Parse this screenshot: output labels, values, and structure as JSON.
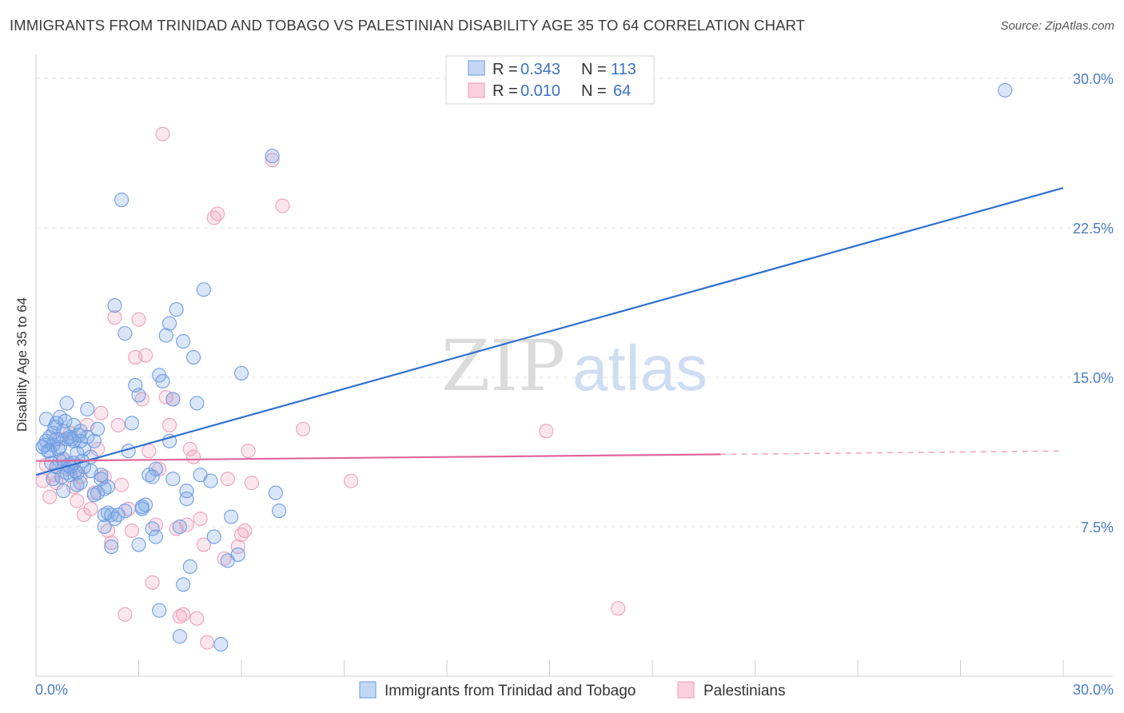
{
  "title": "IMMIGRANTS FROM TRINIDAD AND TOBAGO VS PALESTINIAN DISABILITY AGE 35 TO 64 CORRELATION CHART",
  "source": "Source: ZipAtlas.com",
  "watermark": {
    "zip": "ZIP",
    "atlas": "atlas"
  },
  "colors": {
    "blue": "#7aa6e6",
    "blue_line": "#2f6fcf",
    "pink": "#f2a6c0",
    "pink_line": "#e0669a",
    "tick": "#4a7cc4"
  },
  "chart_data": {
    "type": "scatter",
    "title": "IMMIGRANTS FROM TRINIDAD AND TOBAGO VS PALESTINIAN DISABILITY AGE 35 TO 64 CORRELATION CHART",
    "xlabel": "",
    "ylabel": "Disability Age 35 to 64",
    "xlim": [
      0,
      30
    ],
    "ylim": [
      0,
      30.8
    ],
    "y_ticks": [
      7.5,
      15.0,
      22.5,
      30.0
    ],
    "y_tick_labels": [
      "7.5%",
      "15.0%",
      "22.5%",
      "30.0%"
    ],
    "x_tick_labels": [
      "0.0%",
      "30.0%"
    ],
    "grid": true,
    "legend_placement": "top-center",
    "series": [
      {
        "name": "Immigrants from Trinidad and Tobago",
        "legend_label": "Immigrants from Trinidad and Tobago",
        "r_label": "R =",
        "r_value": "0.343",
        "n_label": "N =",
        "n_value": "113",
        "color": "#7aa6e6",
        "trend": {
          "x": [
            0,
            30
          ],
          "y": [
            10.1,
            24.5
          ],
          "dashed_from": null
        },
        "points": [
          [
            0.2,
            11.5
          ],
          [
            0.3,
            11.8
          ],
          [
            0.3,
            12.9
          ],
          [
            0.4,
            11.3
          ],
          [
            0.5,
            12.2
          ],
          [
            0.5,
            11.6
          ],
          [
            0.6,
            10.5
          ],
          [
            0.6,
            12.7
          ],
          [
            0.7,
            11.5
          ],
          [
            0.7,
            13.0
          ],
          [
            0.8,
            12.3
          ],
          [
            0.8,
            10.9
          ],
          [
            0.9,
            11.9
          ],
          [
            0.9,
            13.7
          ],
          [
            1.0,
            10.1
          ],
          [
            1.0,
            10.5
          ],
          [
            1.1,
            11.8
          ],
          [
            1.1,
            12.6
          ],
          [
            1.2,
            9.6
          ],
          [
            1.2,
            10.2
          ],
          [
            1.3,
            12.3
          ],
          [
            1.3,
            11.8
          ],
          [
            1.4,
            10.5
          ],
          [
            1.5,
            13.4
          ],
          [
            1.5,
            12.0
          ],
          [
            1.6,
            11.0
          ],
          [
            1.7,
            11.8
          ],
          [
            1.8,
            9.2
          ],
          [
            1.8,
            12.4
          ],
          [
            1.9,
            9.9
          ],
          [
            2.0,
            8.1
          ],
          [
            2.0,
            9.4
          ],
          [
            2.1,
            8.2
          ],
          [
            2.2,
            6.5
          ],
          [
            2.2,
            8.1
          ],
          [
            2.3,
            7.9
          ],
          [
            2.3,
            18.6
          ],
          [
            2.5,
            23.9
          ],
          [
            2.6,
            17.2
          ],
          [
            2.7,
            11.3
          ],
          [
            2.8,
            12.7
          ],
          [
            2.9,
            14.6
          ],
          [
            3.0,
            14.1
          ],
          [
            3.0,
            6.6
          ],
          [
            3.1,
            8.4
          ],
          [
            3.2,
            8.6
          ],
          [
            3.3,
            10.1
          ],
          [
            3.4,
            7.4
          ],
          [
            3.5,
            7.0
          ],
          [
            3.6,
            15.1
          ],
          [
            3.7,
            14.8
          ],
          [
            3.8,
            17.1
          ],
          [
            3.9,
            17.7
          ],
          [
            4.0,
            13.9
          ],
          [
            4.1,
            18.4
          ],
          [
            4.2,
            7.5
          ],
          [
            4.3,
            16.8
          ],
          [
            4.4,
            8.9
          ],
          [
            4.5,
            5.5
          ],
          [
            4.6,
            16.0
          ],
          [
            4.7,
            13.7
          ],
          [
            4.8,
            10.1
          ],
          [
            4.9,
            19.4
          ],
          [
            5.1,
            9.8
          ],
          [
            5.2,
            7.0
          ],
          [
            5.4,
            1.6
          ],
          [
            5.6,
            5.8
          ],
          [
            5.7,
            8.0
          ],
          [
            6.0,
            15.2
          ],
          [
            6.9,
            26.1
          ],
          [
            7.0,
            9.2
          ],
          [
            7.1,
            8.3
          ],
          [
            3.9,
            11.8
          ],
          [
            4.0,
            9.9
          ],
          [
            4.4,
            9.3
          ],
          [
            4.3,
            4.6
          ],
          [
            3.5,
            10.4
          ],
          [
            3.1,
            8.5
          ],
          [
            2.6,
            8.3
          ],
          [
            2.4,
            8.1
          ],
          [
            2.1,
            9.5
          ],
          [
            1.9,
            10.1
          ],
          [
            1.7,
            9.1
          ],
          [
            1.6,
            10.3
          ],
          [
            1.4,
            11.4
          ],
          [
            1.3,
            9.7
          ],
          [
            1.2,
            11.2
          ],
          [
            1.1,
            10.7
          ],
          [
            1.0,
            12.0
          ],
          [
            0.9,
            10.2
          ],
          [
            0.8,
            9.3
          ],
          [
            0.7,
            10.8
          ],
          [
            0.6,
            11.9
          ],
          [
            0.5,
            9.9
          ],
          [
            0.4,
            12.0
          ],
          [
            0.35,
            11.3
          ],
          [
            0.25,
            11.6
          ],
          [
            0.45,
            10.7
          ],
          [
            0.55,
            12.5
          ],
          [
            0.65,
            11.4
          ],
          [
            0.75,
            10.0
          ],
          [
            0.85,
            12.8
          ],
          [
            0.95,
            10.6
          ],
          [
            1.05,
            11.9
          ],
          [
            1.15,
            10.3
          ],
          [
            1.25,
            12.1
          ],
          [
            1.35,
            10.8
          ],
          [
            3.6,
            3.3
          ],
          [
            4.2,
            2.0
          ],
          [
            5.9,
            6.1
          ],
          [
            2.0,
            7.5
          ],
          [
            28.3,
            29.4
          ],
          [
            3.4,
            10.0
          ]
        ]
      },
      {
        "name": "Palestinians",
        "legend_label": "Palestinians",
        "r_label": "R =",
        "r_value": "0.010",
        "n_label": "N =",
        "n_value": "64",
        "color": "#f2a6c0",
        "trend": {
          "x": [
            0,
            30
          ],
          "y": [
            10.8,
            11.3
          ],
          "dashed_from": 20.0
        },
        "points": [
          [
            0.2,
            9.8
          ],
          [
            0.3,
            10.6
          ],
          [
            0.4,
            9.0
          ],
          [
            0.5,
            10.1
          ],
          [
            0.6,
            9.7
          ],
          [
            0.7,
            11.9
          ],
          [
            0.8,
            10.8
          ],
          [
            0.9,
            10.4
          ],
          [
            1.0,
            12.2
          ],
          [
            1.1,
            9.5
          ],
          [
            1.2,
            8.8
          ],
          [
            1.3,
            10.0
          ],
          [
            1.4,
            8.1
          ],
          [
            1.5,
            12.6
          ],
          [
            1.6,
            8.4
          ],
          [
            1.7,
            9.2
          ],
          [
            1.8,
            11.4
          ],
          [
            1.9,
            13.2
          ],
          [
            2.0,
            10.0
          ],
          [
            2.1,
            7.3
          ],
          [
            2.2,
            6.7
          ],
          [
            2.3,
            18.0
          ],
          [
            2.4,
            12.6
          ],
          [
            2.5,
            9.6
          ],
          [
            2.6,
            3.1
          ],
          [
            2.7,
            8.4
          ],
          [
            2.8,
            7.3
          ],
          [
            2.9,
            16.0
          ],
          [
            3.0,
            17.9
          ],
          [
            3.1,
            13.9
          ],
          [
            3.2,
            16.1
          ],
          [
            3.3,
            11.3
          ],
          [
            3.4,
            4.7
          ],
          [
            3.5,
            7.6
          ],
          [
            3.6,
            10.4
          ],
          [
            3.7,
            27.2
          ],
          [
            3.8,
            14.0
          ],
          [
            3.9,
            12.6
          ],
          [
            4.0,
            13.9
          ],
          [
            4.1,
            7.4
          ],
          [
            4.2,
            3.0
          ],
          [
            4.3,
            3.1
          ],
          [
            4.4,
            7.6
          ],
          [
            4.5,
            11.4
          ],
          [
            4.6,
            11.0
          ],
          [
            4.7,
            2.9
          ],
          [
            4.8,
            7.9
          ],
          [
            4.9,
            6.6
          ],
          [
            5.0,
            1.7
          ],
          [
            5.2,
            23.0
          ],
          [
            5.3,
            23.2
          ],
          [
            5.5,
            5.9
          ],
          [
            5.6,
            9.9
          ],
          [
            5.9,
            6.5
          ],
          [
            6.0,
            7.1
          ],
          [
            6.2,
            11.3
          ],
          [
            6.3,
            9.7
          ],
          [
            6.9,
            25.9
          ],
          [
            7.2,
            23.6
          ],
          [
            7.8,
            12.4
          ],
          [
            9.2,
            9.8
          ],
          [
            14.9,
            12.3
          ],
          [
            17.0,
            3.4
          ],
          [
            6.1,
            7.3
          ]
        ]
      }
    ]
  }
}
